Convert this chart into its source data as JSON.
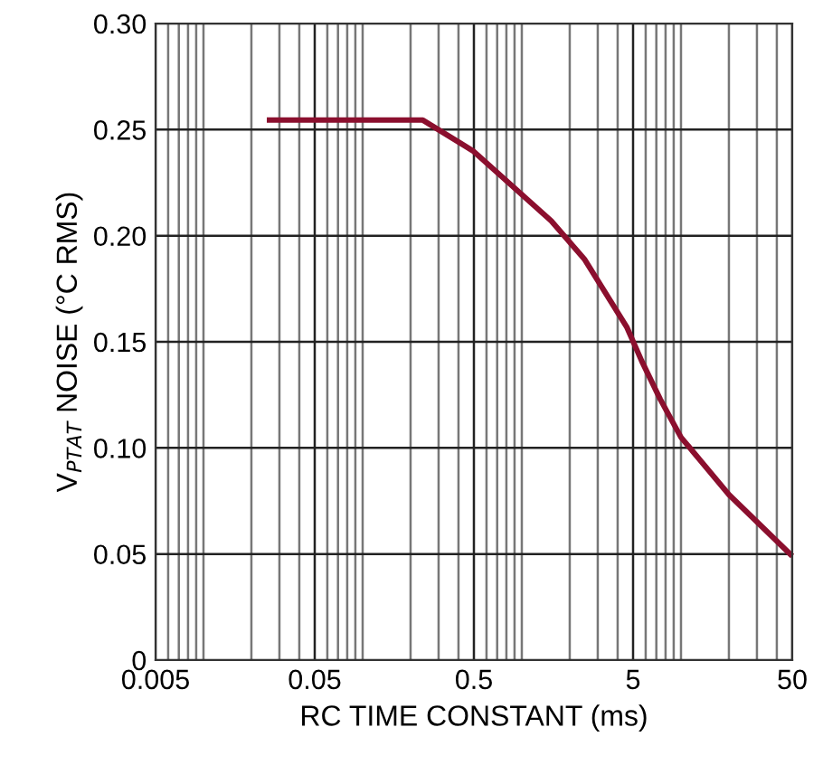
{
  "chart_data": {
    "type": "line",
    "xlabel": "RC TIME CONSTANT (ms)",
    "ylabel": "V$_{PTAT}$ NOISE (°C RMS)",
    "x": [
      0.025,
      0.239,
      0.493,
      1.53,
      2.47,
      4.56,
      5.66,
      7.4,
      10,
      20,
      50
    ],
    "series": [
      {
        "color": "#8b0f2e",
        "values": [
          0.2545,
          0.2545,
          0.24,
          0.207,
          0.189,
          0.157,
          0.141,
          0.123,
          0.105,
          0.078,
          0.049
        ]
      }
    ],
    "log": "x",
    "xlim": [
      0.005,
      50
    ],
    "xticks": [
      0.005,
      0.05,
      0.5,
      5,
      50
    ],
    "ylim": [
      0,
      0.3
    ],
    "yticks": [
      {
        "value": 0,
        "label": "0"
      },
      {
        "value": 0.05,
        "label": "0.05"
      },
      {
        "value": 0.1,
        "label": "0.10"
      },
      {
        "value": 0.15,
        "label": "0.15"
      },
      {
        "value": 0.2,
        "label": "0.20"
      },
      {
        "value": 0.25,
        "label": "0.25"
      },
      {
        "value": 0.3,
        "label": "0.30"
      }
    ],
    "grid": true,
    "line_style": "solid",
    "marker": "none"
  }
}
